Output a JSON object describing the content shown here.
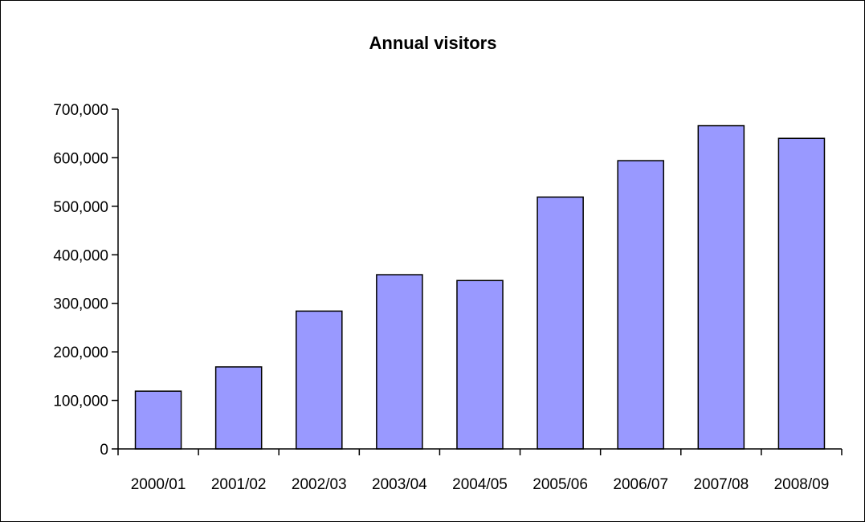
{
  "chart_data": {
    "type": "bar",
    "title": "Annual visitors",
    "xlabel": "",
    "ylabel": "",
    "categories": [
      "2000/01",
      "2001/02",
      "2002/03",
      "2003/04",
      "2004/05",
      "2005/06",
      "2006/07",
      "2007/08",
      "2008/09"
    ],
    "values": [
      119000,
      169000,
      284000,
      359000,
      347000,
      519000,
      594000,
      666000,
      640000
    ],
    "ylim": [
      0,
      700000
    ],
    "yticks": [
      0,
      100000,
      200000,
      300000,
      400000,
      500000,
      600000,
      700000
    ],
    "ytick_labels": [
      "0",
      "100,000",
      "200,000",
      "300,000",
      "400,000",
      "500,000",
      "600,000",
      "700,000"
    ],
    "bar_color": "#9999ff",
    "bar_edge_color": "#000000",
    "grid": false,
    "legend": "none"
  }
}
